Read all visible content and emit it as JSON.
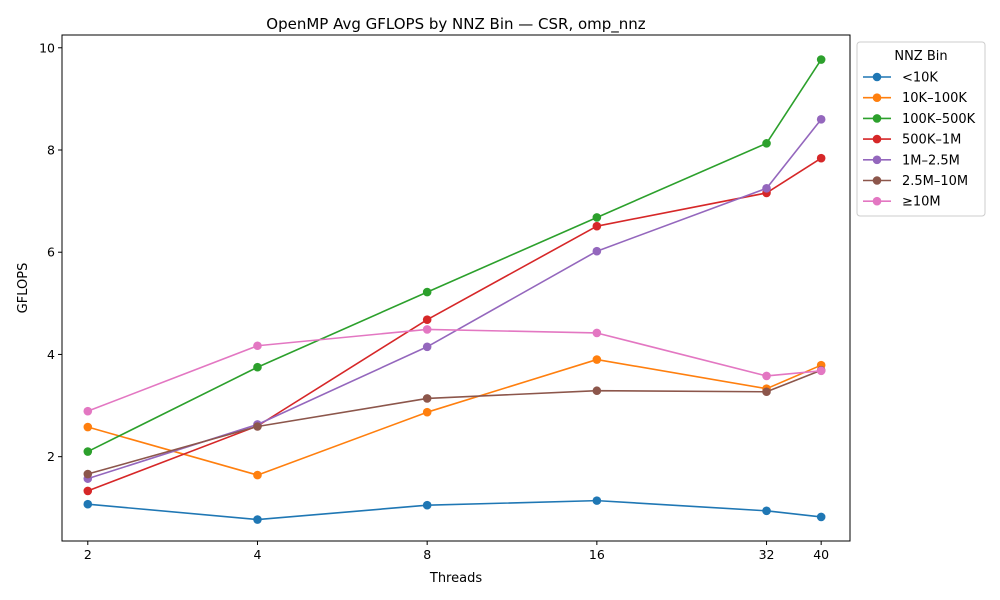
{
  "chart_data": {
    "type": "line",
    "title": "OpenMP Avg GFLOPS by NNZ Bin — CSR, omp_nnz",
    "xlabel": "Threads",
    "ylabel": "GFLOPS",
    "x": [
      2,
      4,
      8,
      16,
      32,
      40
    ],
    "x_scale": "log2",
    "x_ticks": [
      2,
      4,
      8,
      16,
      32,
      40
    ],
    "xlim": [
      1.8,
      45
    ],
    "y_ticks": [
      2,
      4,
      6,
      8,
      10
    ],
    "ylim": [
      0.35,
      10.25
    ],
    "legend_title": "NNZ Bin",
    "legend_position": "outside upper right",
    "grid": false,
    "series": [
      {
        "name": "<10K",
        "color": "#1f77b4",
        "values": [
          1.07,
          0.77,
          1.05,
          1.14,
          0.94,
          0.82
        ]
      },
      {
        "name": "10K–100K",
        "color": "#ff7f0e",
        "values": [
          2.58,
          1.64,
          2.87,
          3.9,
          3.33,
          3.79
        ]
      },
      {
        "name": "100K–500K",
        "color": "#2ca02c",
        "values": [
          2.1,
          3.75,
          5.22,
          6.68,
          8.13,
          9.77
        ]
      },
      {
        "name": "500K–1M",
        "color": "#d62728",
        "values": [
          1.33,
          2.6,
          4.68,
          6.51,
          7.16,
          7.84
        ]
      },
      {
        "name": "1M–2.5M",
        "color": "#9467bd",
        "values": [
          1.57,
          2.63,
          4.15,
          6.02,
          7.25,
          8.6
        ]
      },
      {
        "name": "2.5M–10M",
        "color": "#8c564b",
        "values": [
          1.66,
          2.59,
          3.14,
          3.29,
          3.27,
          3.69
        ]
      },
      {
        "name": "≥10M",
        "color": "#e377c2",
        "values": [
          2.89,
          4.17,
          4.49,
          4.42,
          3.58,
          3.68
        ]
      }
    ]
  }
}
